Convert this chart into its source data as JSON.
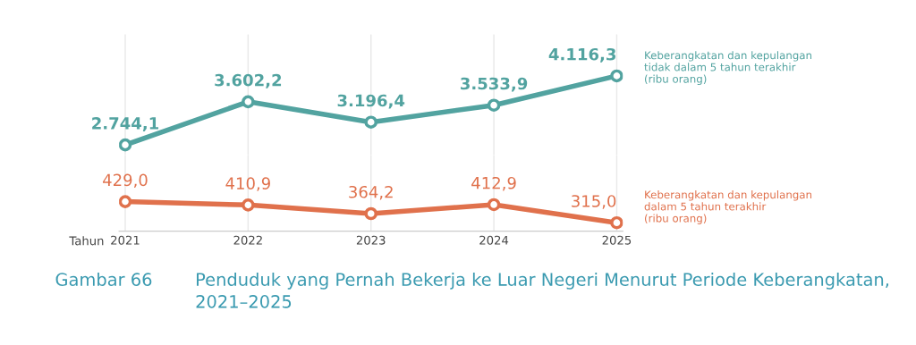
{
  "chart_data": [
    {
      "type": "line",
      "categories": [
        "2021",
        "2022",
        "2023",
        "2024",
        "2025"
      ],
      "series": [
        {
          "name": "Keberangkatan dan kepulangan\ntidak dalam 5 tahun terakhir\n(ribu orang)",
          "color": "#52a3a0",
          "values": [
            2744.1,
            3602.2,
            3196.4,
            3533.9,
            4116.3
          ],
          "value_labels": [
            "2.744,1",
            "3.602,2",
            "3.196,4",
            "3.533,9",
            "4.116,3"
          ]
        }
      ],
      "marker": "circle",
      "line_style": "solid",
      "grid": "x",
      "legend": "right",
      "tick_labels": false
    },
    {
      "type": "line",
      "title": "Penduduk yang Pernah Bekerja ke Luar Negeri Menurut Periode Keberangkatan, 2021–2025",
      "annotations": [
        "Gambar 66"
      ],
      "xlabel": "Tahun",
      "categories": [
        "2021",
        "2022",
        "2023",
        "2024",
        "2025"
      ],
      "series": [
        {
          "name": "Keberangkatan dan kepulangan\ndalam 5 tahun terakhir\n(ribu orang)",
          "color": "#e0714c",
          "values": [
            429.0,
            410.9,
            364.2,
            412.9,
            315.0
          ],
          "value_labels": [
            "429,0",
            "410,9",
            "364,2",
            "412,9",
            "315,0"
          ]
        }
      ],
      "marker": "circle",
      "line_style": "solid",
      "grid": "x",
      "legend": "right",
      "tick_labels": "x"
    }
  ]
}
